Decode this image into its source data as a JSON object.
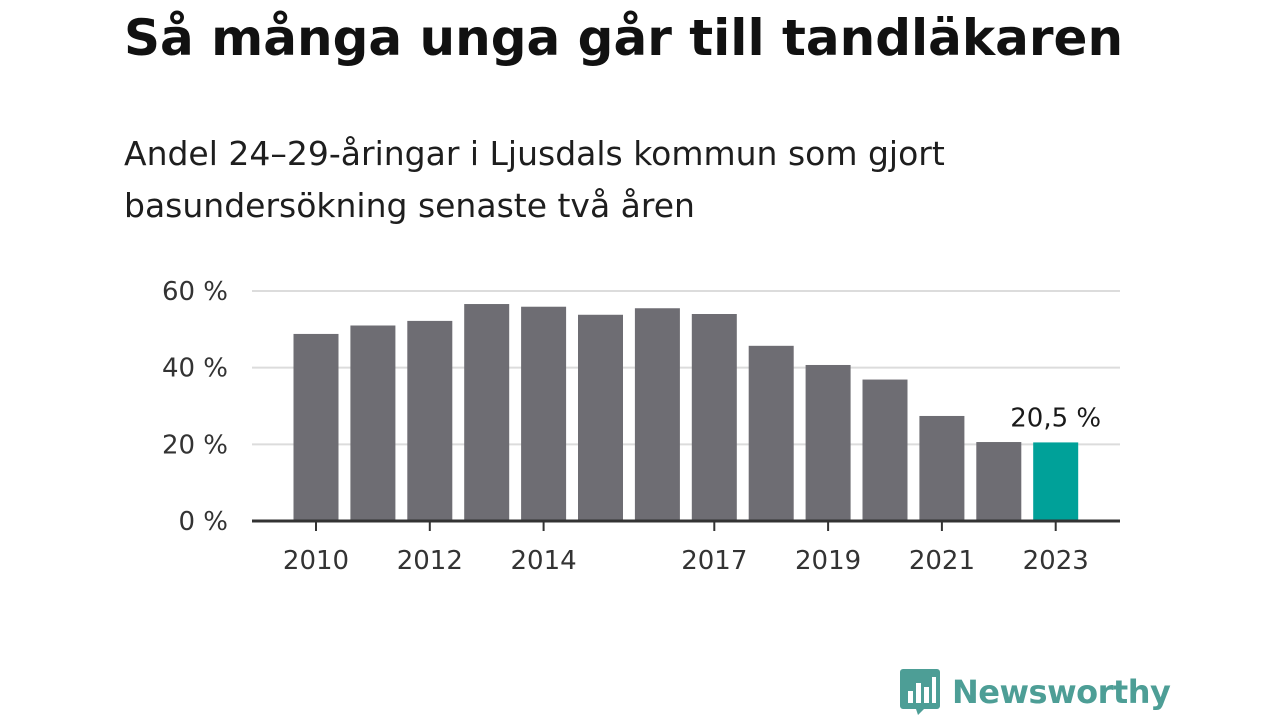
{
  "title": "Så många unga går till tandläkaren",
  "subtitle": "Andel 24–29-åringar i Ljusdals kommun som gjort basundersökning senaste två åren",
  "brand": {
    "name": "Newsworthy",
    "icon": "bar-chart-speech-bubble-icon",
    "color": "#4d9e96"
  },
  "chart_data": {
    "type": "bar",
    "title": "Så många unga går till tandläkaren",
    "subtitle": "Andel 24–29-åringar i Ljusdals kommun som gjort basundersökning senaste två åren",
    "xlabel": "",
    "ylabel": "",
    "categories": [
      "2010",
      "2011",
      "2012",
      "2013",
      "2014",
      "2015",
      "2016",
      "2017",
      "2018",
      "2019",
      "2020",
      "2021",
      "2022",
      "2023"
    ],
    "x_tick_labels": [
      "2010",
      "2012",
      "2014",
      "2017",
      "2019",
      "2021",
      "2023"
    ],
    "values": [
      48.8,
      51.0,
      52.2,
      56.6,
      55.9,
      53.8,
      55.5,
      54.0,
      45.7,
      40.7,
      36.9,
      27.4,
      20.6,
      20.5
    ],
    "highlight_index": 13,
    "annotations": [
      {
        "category": "2023",
        "text": "20,5 %"
      }
    ],
    "y_ticks": [
      0,
      20,
      40,
      60
    ],
    "y_tick_labels": [
      "0 %",
      "20 %",
      "40 %",
      "60 %"
    ],
    "ylim": [
      0,
      60
    ],
    "grid": true,
    "legend": "none",
    "colors": {
      "bar": "#6e6d73",
      "highlight": "#00a199",
      "grid": "#dcdcdc",
      "axis": "#333333"
    }
  }
}
